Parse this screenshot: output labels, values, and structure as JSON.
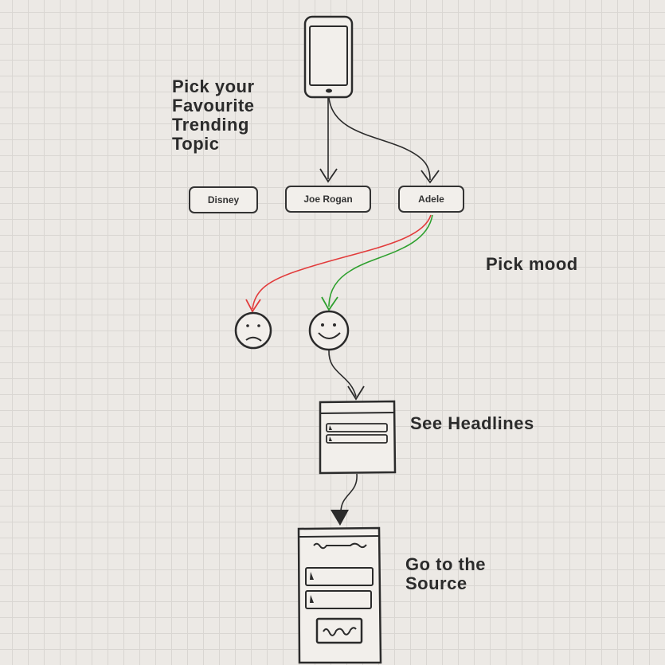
{
  "labels": {
    "pick_topic": "Pick your\nFavourite\nTrending\nTopic",
    "pick_mood": "Pick mood",
    "see_headlines": "See Headlines",
    "go_to_source": "Go to the\nSource"
  },
  "topics": [
    "Disney",
    "Joe Rogan",
    "Adele"
  ],
  "colors": {
    "ink": "#2b2b2b",
    "sad_arrow": "#e23b3b",
    "happy_arrow": "#2ea02e",
    "grid": "#d9d6d2",
    "background": "#ece9e5"
  },
  "icons": [
    "phone-icon",
    "sad-face-icon",
    "happy-face-icon",
    "headlines-card-icon",
    "source-article-icon"
  ]
}
